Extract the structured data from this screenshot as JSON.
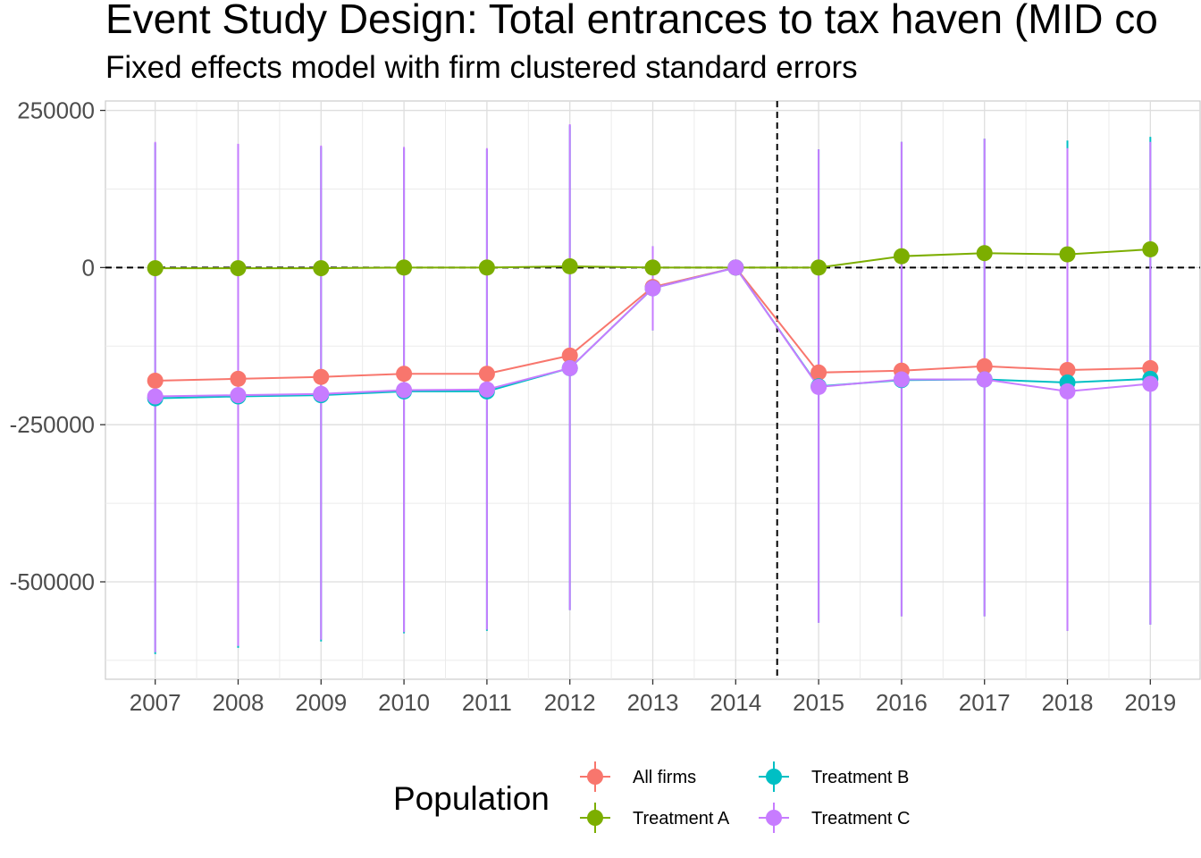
{
  "chart_data": {
    "type": "line",
    "title": "Event Study Design: Total entrances to tax haven (MID co",
    "subtitle": "Fixed effects model with firm clustered standard errors",
    "xlabel": "",
    "ylabel": "",
    "x": [
      2007,
      2008,
      2009,
      2010,
      2011,
      2012,
      2013,
      2014,
      2015,
      2016,
      2017,
      2018,
      2019
    ],
    "x_tick_labels": [
      "2007",
      "2008",
      "2009",
      "2010",
      "2011",
      "2012",
      "2013",
      "2014",
      "2015",
      "2016",
      "2017",
      "2018",
      "2019"
    ],
    "ylim": [
      -655000,
      265000
    ],
    "y_ticks": [
      250000,
      0,
      -250000,
      -500000
    ],
    "y_tick_labels": [
      "250000",
      "0",
      "-250000",
      "-500000"
    ],
    "reference_lines": {
      "horizontal": 0,
      "vertical": 2014.5
    },
    "grid": true,
    "legend": {
      "title": "Population",
      "position": "bottom"
    },
    "series": [
      {
        "name": "All firms",
        "color": "#F8766D",
        "values": [
          -180000,
          -177000,
          -174000,
          -169000,
          -169000,
          -140000,
          -31000,
          0,
          -167000,
          -164000,
          -157000,
          -163000,
          -160000
        ]
      },
      {
        "name": "Treatment A",
        "color": "#7CAE00",
        "values": [
          -1000,
          -1000,
          -1000,
          0,
          0,
          2000,
          0,
          0,
          0,
          18000,
          23000,
          21000,
          29000
        ],
        "ci_low": [
          -2000,
          -2000,
          -2000,
          -1000,
          -1000,
          0,
          -2000,
          0,
          -2000,
          15000,
          20000,
          18000,
          26000
        ],
        "ci_high": [
          0,
          0,
          0,
          1000,
          1000,
          4000,
          2000,
          0,
          2000,
          21000,
          26000,
          24000,
          32000
        ]
      },
      {
        "name": "Treatment B",
        "color": "#00BFC4",
        "values": [
          -208000,
          -205000,
          -203000,
          -197000,
          -197000,
          -160000,
          -33000,
          0,
          -189000,
          -179000,
          -178000,
          -183000,
          -177000
        ],
        "ci_low": [
          -615000,
          -605000,
          -595000,
          -582000,
          -578000,
          -545000,
          -100000,
          0,
          -565000,
          -555000,
          -555000,
          -578000,
          -568000
        ],
        "ci_high": [
          198000,
          195000,
          192000,
          190000,
          188000,
          226000,
          34000,
          0,
          188000,
          200000,
          205000,
          202000,
          208000
        ]
      },
      {
        "name": "Treatment C",
        "color": "#C77CFF",
        "values": [
          -205000,
          -203000,
          -201000,
          -195000,
          -194000,
          -160000,
          -33000,
          0,
          -190000,
          -178000,
          -178000,
          -197000,
          -185000
        ],
        "ci_low": [
          -612000,
          -602000,
          -592000,
          -580000,
          -576000,
          -545000,
          -100000,
          0,
          -565000,
          -555000,
          -555000,
          -578000,
          -568000
        ],
        "ci_high": [
          200000,
          197000,
          194000,
          192000,
          190000,
          228000,
          34000,
          0,
          188000,
          200000,
          205000,
          190000,
          200000
        ]
      }
    ]
  }
}
